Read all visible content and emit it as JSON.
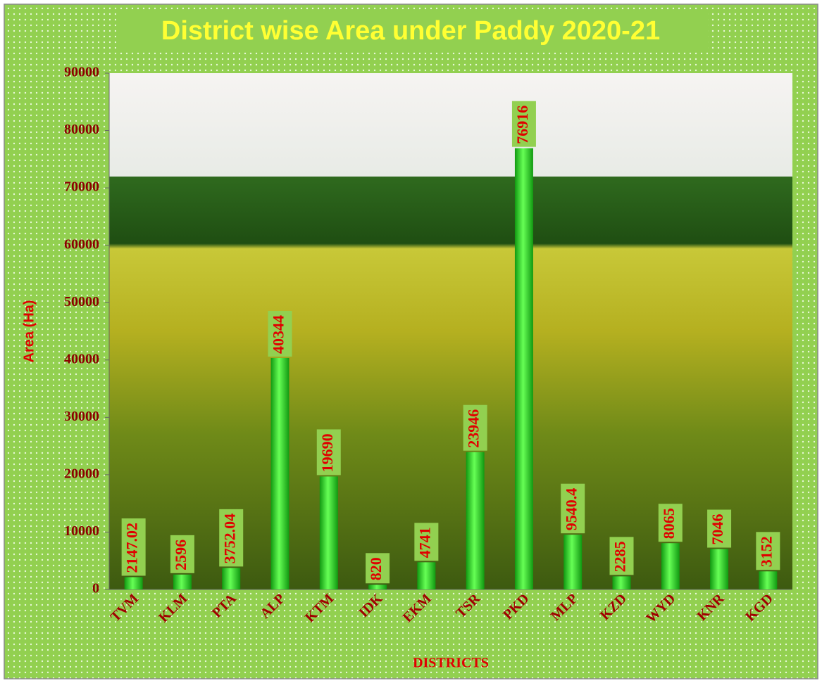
{
  "chart_data": {
    "type": "bar",
    "title": "District wise Area under Paddy 2020-21",
    "xlabel": "DISTRICTS",
    "ylabel": "Area (Ha)",
    "categories": [
      "TVM",
      "KLM",
      "PTA",
      "ALP",
      "KTM",
      "IDK",
      "EKM",
      "TSR",
      "PKD",
      "MLP",
      "KZD",
      "WYD",
      "KNR",
      "KGD"
    ],
    "values": [
      2147.02,
      2596,
      3752.04,
      40344,
      19690,
      820,
      4741,
      23946,
      76916,
      9540.4,
      2285,
      8065,
      7046,
      3152
    ],
    "color": "#33dd33",
    "ylim": [
      0,
      90000
    ],
    "yticks": [
      0,
      10000,
      20000,
      30000,
      40000,
      50000,
      60000,
      70000,
      80000,
      90000
    ]
  }
}
